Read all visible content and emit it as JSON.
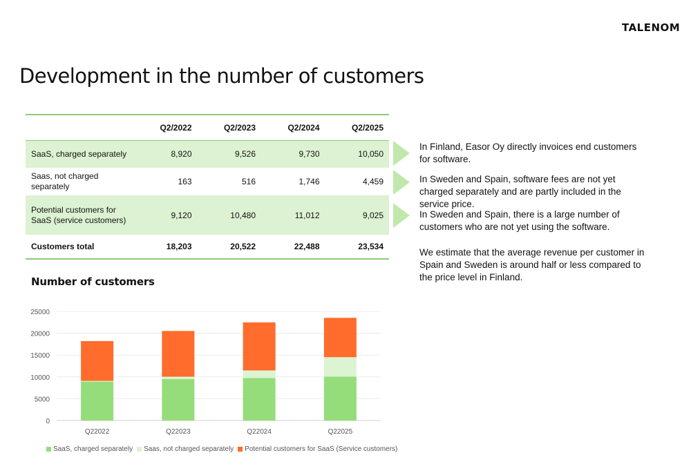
{
  "brand": {
    "logo_text": "TALENOM"
  },
  "page_title": "Development in the number of customers",
  "table": {
    "headers": [
      "",
      "Q2/2022",
      "Q2/2023",
      "Q2/2024",
      "Q2/2025"
    ],
    "rows": [
      {
        "label": "SaaS, charged separately",
        "values": [
          "8,920",
          "9,526",
          "9,730",
          "10,050"
        ]
      },
      {
        "label": "Saas, not charged separately",
        "values": [
          "163",
          "516",
          "1,746",
          "4,459"
        ]
      },
      {
        "label": "Potential customers for SaaS (service customers)",
        "values": [
          "9,120",
          "10,480",
          "11,012",
          "9,025"
        ]
      },
      {
        "label": "Customers total",
        "values": [
          "18,203",
          "20,522",
          "22,488",
          "23,534"
        ]
      }
    ]
  },
  "notes": [
    "In Finland, Easor Oy directly invoices end customers for software.",
    "In Sweden and Spain, software fees are not yet charged separately and are partly included in the service price.",
    "In Sweden and Spain, there is a large number of customers who are not yet using the software.",
    "We estimate that the average revenue per customer in Spain and Sweden is around half or less compared to the price level in Finland."
  ],
  "chart_data": {
    "type": "bar",
    "stacked": true,
    "title": "Number of customers",
    "categories": [
      "Q22022",
      "Q22023",
      "Q22024",
      "Q22025"
    ],
    "series": [
      {
        "name": "SaaS, charged separately",
        "values": [
          8920,
          9526,
          9730,
          10050
        ],
        "color": "#95dc7a"
      },
      {
        "name": "Saas, not charged separately",
        "values": [
          163,
          516,
          1746,
          4459
        ],
        "color": "#dcf4d2"
      },
      {
        "name": "Potential customers for SaaS (Service customers)",
        "values": [
          9120,
          10480,
          11012,
          9025
        ],
        "color": "#ff6c2c"
      }
    ],
    "yticks": [
      "0",
      "5000",
      "10000",
      "15000",
      "20000",
      "25000"
    ],
    "ylim": [
      0,
      25000
    ],
    "grid": true,
    "legend": "bottom"
  }
}
